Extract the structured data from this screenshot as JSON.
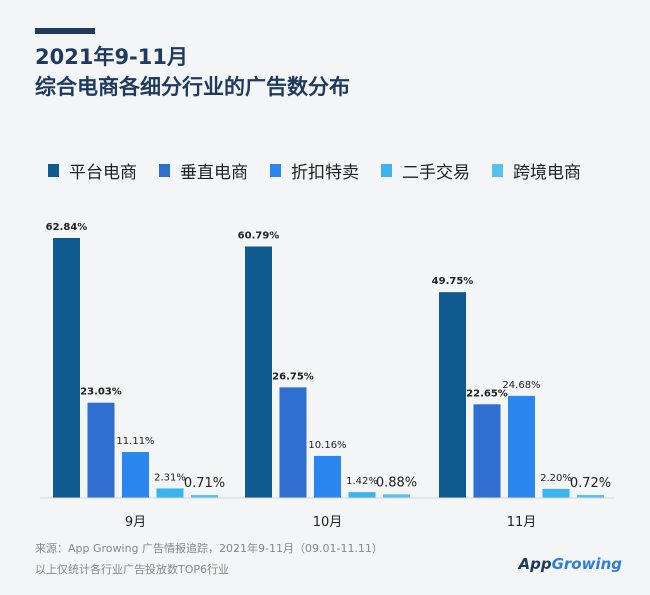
{
  "header": {
    "title": "2021年9-11月",
    "subtitle": "综合电商各细分行业的广告数分布"
  },
  "footer": {
    "source": "来源：App Growing 广告情报追踪，2021年9-11月（09.01-11.11）",
    "note": "以上仅统计各行业广告投放数TOP6行业",
    "logo_text": "App Growing",
    "logo_prefix": "App",
    "logo_suffix": "Growing"
  },
  "colors": {
    "series": [
      "#0f5a8f",
      "#2f6fd0",
      "#2a86f0",
      "#39b4f0",
      "#55c1ec"
    ]
  },
  "chart_data": {
    "type": "bar",
    "categories": [
      "9月",
      "10月",
      "11月"
    ],
    "series": [
      {
        "name": "平台电商",
        "values": [
          62.84,
          60.79,
          49.75
        ],
        "labels": [
          "62.84%",
          "60.79%",
          "49.75%"
        ]
      },
      {
        "name": "垂直电商",
        "values": [
          23.03,
          26.75,
          22.65
        ],
        "labels": [
          "23.03%",
          "26.75%",
          "22.65%"
        ]
      },
      {
        "name": "折扣特卖",
        "values": [
          11.11,
          10.16,
          24.68
        ],
        "labels": [
          "11.11%",
          "10.16%",
          "24.68%"
        ]
      },
      {
        "name": "二手交易",
        "values": [
          2.31,
          1.42,
          2.2
        ],
        "labels": [
          "2.31%",
          "1.42%",
          "2.20%"
        ]
      },
      {
        "name": "跨境电商",
        "values": [
          0.71,
          0.88,
          0.72
        ],
        "labels": [
          "0.71%",
          "0.88%",
          "0.72%"
        ]
      }
    ],
    "ylim": [
      0,
      62.84
    ],
    "grid": false,
    "legend": "top"
  }
}
